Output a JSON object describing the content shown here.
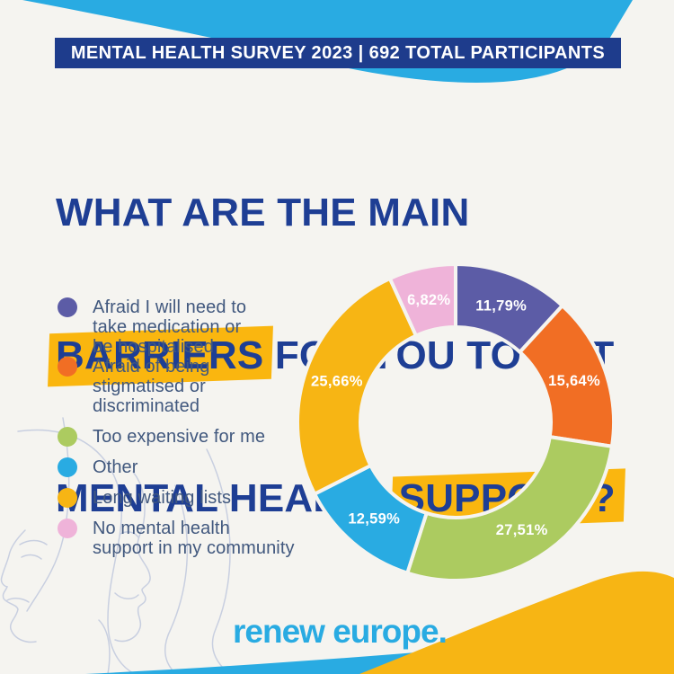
{
  "banner": {
    "text": "MENTAL HEALTH SURVEY 2023 | 692 TOTAL PARTICIPANTS"
  },
  "title": {
    "line1": "WHAT ARE THE MAIN",
    "line2_highlight": "BARRIERS",
    "line2_rest": " FOR YOU TO GET",
    "line3_pre": "MENTAL HEALTH ",
    "line3_highlight": "SUPPORT?"
  },
  "legend": {
    "items": [
      {
        "text": "Afraid I will need to\ntake medication or\nbe hospitalised"
      },
      {
        "text": "Afraid of being\nstigmatised or\ndiscriminated"
      },
      {
        "text": "Too expensive for me"
      },
      {
        "text": "Other"
      },
      {
        "text": "Long waiting lists"
      },
      {
        "text": "No mental health\nsupport in my community"
      }
    ]
  },
  "chart_data": {
    "type": "pie",
    "variant": "donut",
    "start_angle_deg": 0,
    "direction": "clockwise",
    "unit": "%",
    "decimal_separator": ",",
    "segments": [
      {
        "label": "Afraid I will need to take medication or be hospitalised",
        "value": 11.79,
        "display": "11,79%",
        "color": "#5C5CA6"
      },
      {
        "label": "Afraid of being stigmatised or discriminated",
        "value": 15.64,
        "display": "15,64%",
        "color": "#F16E24"
      },
      {
        "label": "Too expensive for me",
        "value": 27.51,
        "display": "27,51%",
        "color": "#ACCB60"
      },
      {
        "label": "Other",
        "value": 12.59,
        "display": "12,59%",
        "color": "#29ABE2"
      },
      {
        "label": "Long waiting lists",
        "value": 25.66,
        "display": "25,66%",
        "color": "#F7B514"
      },
      {
        "label": "No mental health support in my community",
        "value": 6.82,
        "display": "6,82%",
        "color": "#EFB3D9"
      }
    ]
  },
  "footer": {
    "logo_text": "renew europe."
  },
  "colors": {
    "background": "#F5F4F0",
    "banner_bg": "#1E3C8C",
    "banner_text": "#FFFFFF",
    "title_text": "#1E3E94",
    "highlight_yellow": "#FAB60F",
    "legend_text": "#41587E",
    "accent_cyan": "#29ABE2",
    "accent_yellow": "#F7B514",
    "slice_label_text": "#FFFFFF",
    "line_art": "#C4CBDF"
  }
}
